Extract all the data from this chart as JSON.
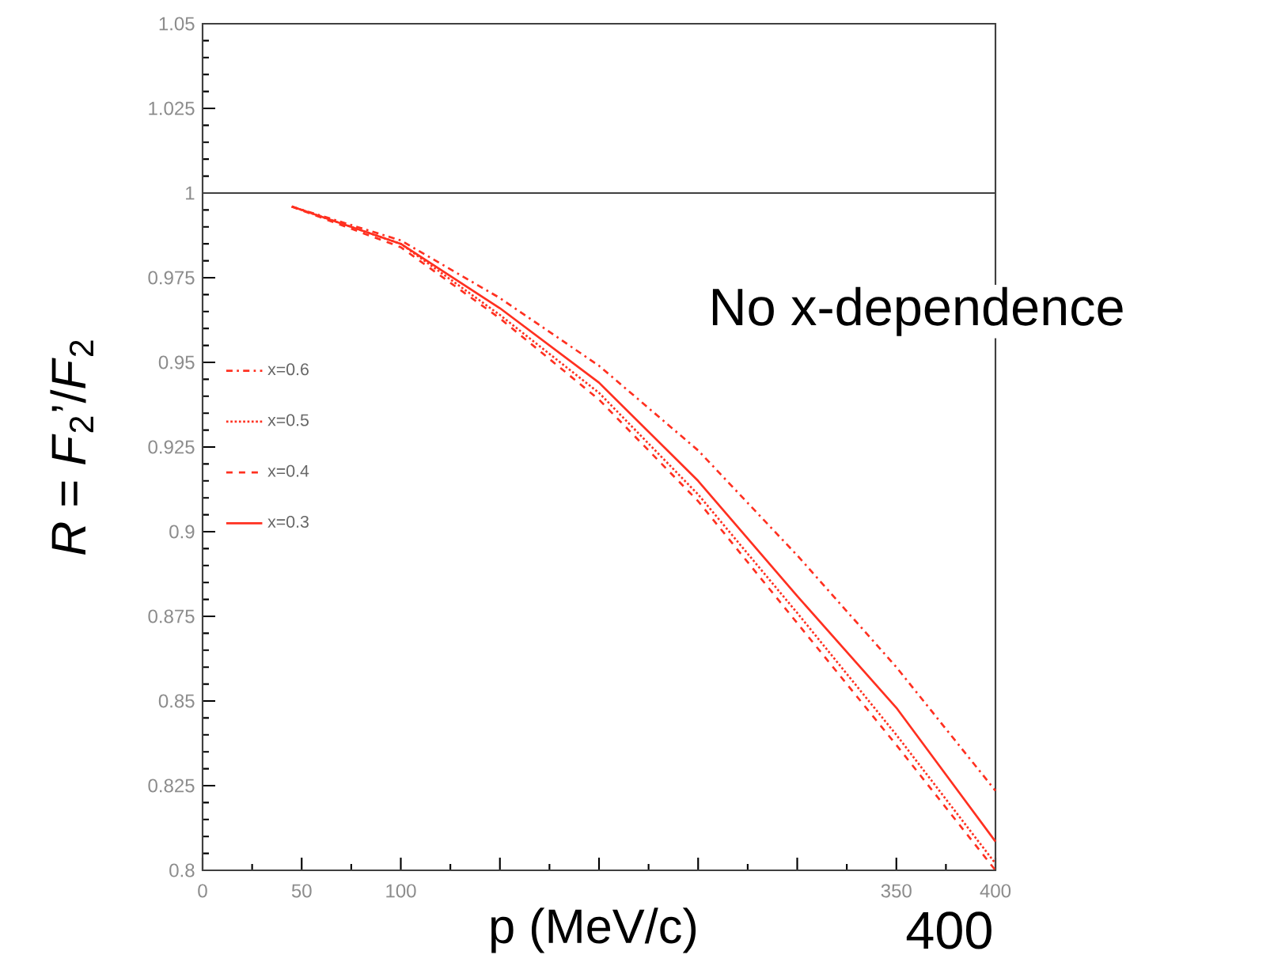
{
  "chart_data": {
    "type": "line",
    "xlabel": "p (MeV/c)",
    "ylabel": "*R* = *F*$_{2}$’/*F*$_{2}$",
    "annotations": [
      "No x-dependence",
      "400"
    ],
    "x": [
      45,
      100,
      150,
      200,
      250,
      300,
      350,
      400
    ],
    "series": [
      {
        "name": "x=0.6",
        "color": "#ff3020",
        "line_style": "dashdot",
        "values": [
          0.996,
          0.986,
          0.969,
          0.949,
          0.924,
          0.893,
          0.86,
          0.8235
        ]
      },
      {
        "name": "x=0.5",
        "color": "#ff3020",
        "line_style": "dotted",
        "values": [
          0.996,
          0.985,
          0.964,
          0.941,
          0.911,
          0.876,
          0.84,
          0.802
        ]
      },
      {
        "name": "x=0.4",
        "color": "#ff3020",
        "line_style": "dashed",
        "values": [
          0.996,
          0.984,
          0.963,
          0.939,
          0.909,
          0.873,
          0.837,
          0.8
        ]
      },
      {
        "name": "x=0.3",
        "color": "#ff3020",
        "line_style": "solid",
        "values": [
          0.996,
          0.985,
          0.966,
          0.944,
          0.915,
          0.881,
          0.848,
          0.8085
        ]
      }
    ],
    "xlim": [
      0,
      400
    ],
    "ylim": [
      0.8,
      1.05
    ],
    "xticks": [
      0,
      50,
      100,
      {
        "value": 150,
        "label": null
      },
      {
        "value": 200,
        "label": null
      },
      {
        "value": 250,
        "label": null
      },
      {
        "value": 300,
        "label": null
      },
      350,
      400
    ],
    "yticks": [
      0.8,
      0.825,
      0.85,
      0.875,
      0.9,
      0.925,
      0.95,
      0.975,
      1,
      1.025,
      1.05
    ],
    "ref_lines": [
      {
        "axis": "y",
        "value": 1,
        "color": "#404040"
      }
    ],
    "legend": "left",
    "marker": "none",
    "grid": false
  }
}
